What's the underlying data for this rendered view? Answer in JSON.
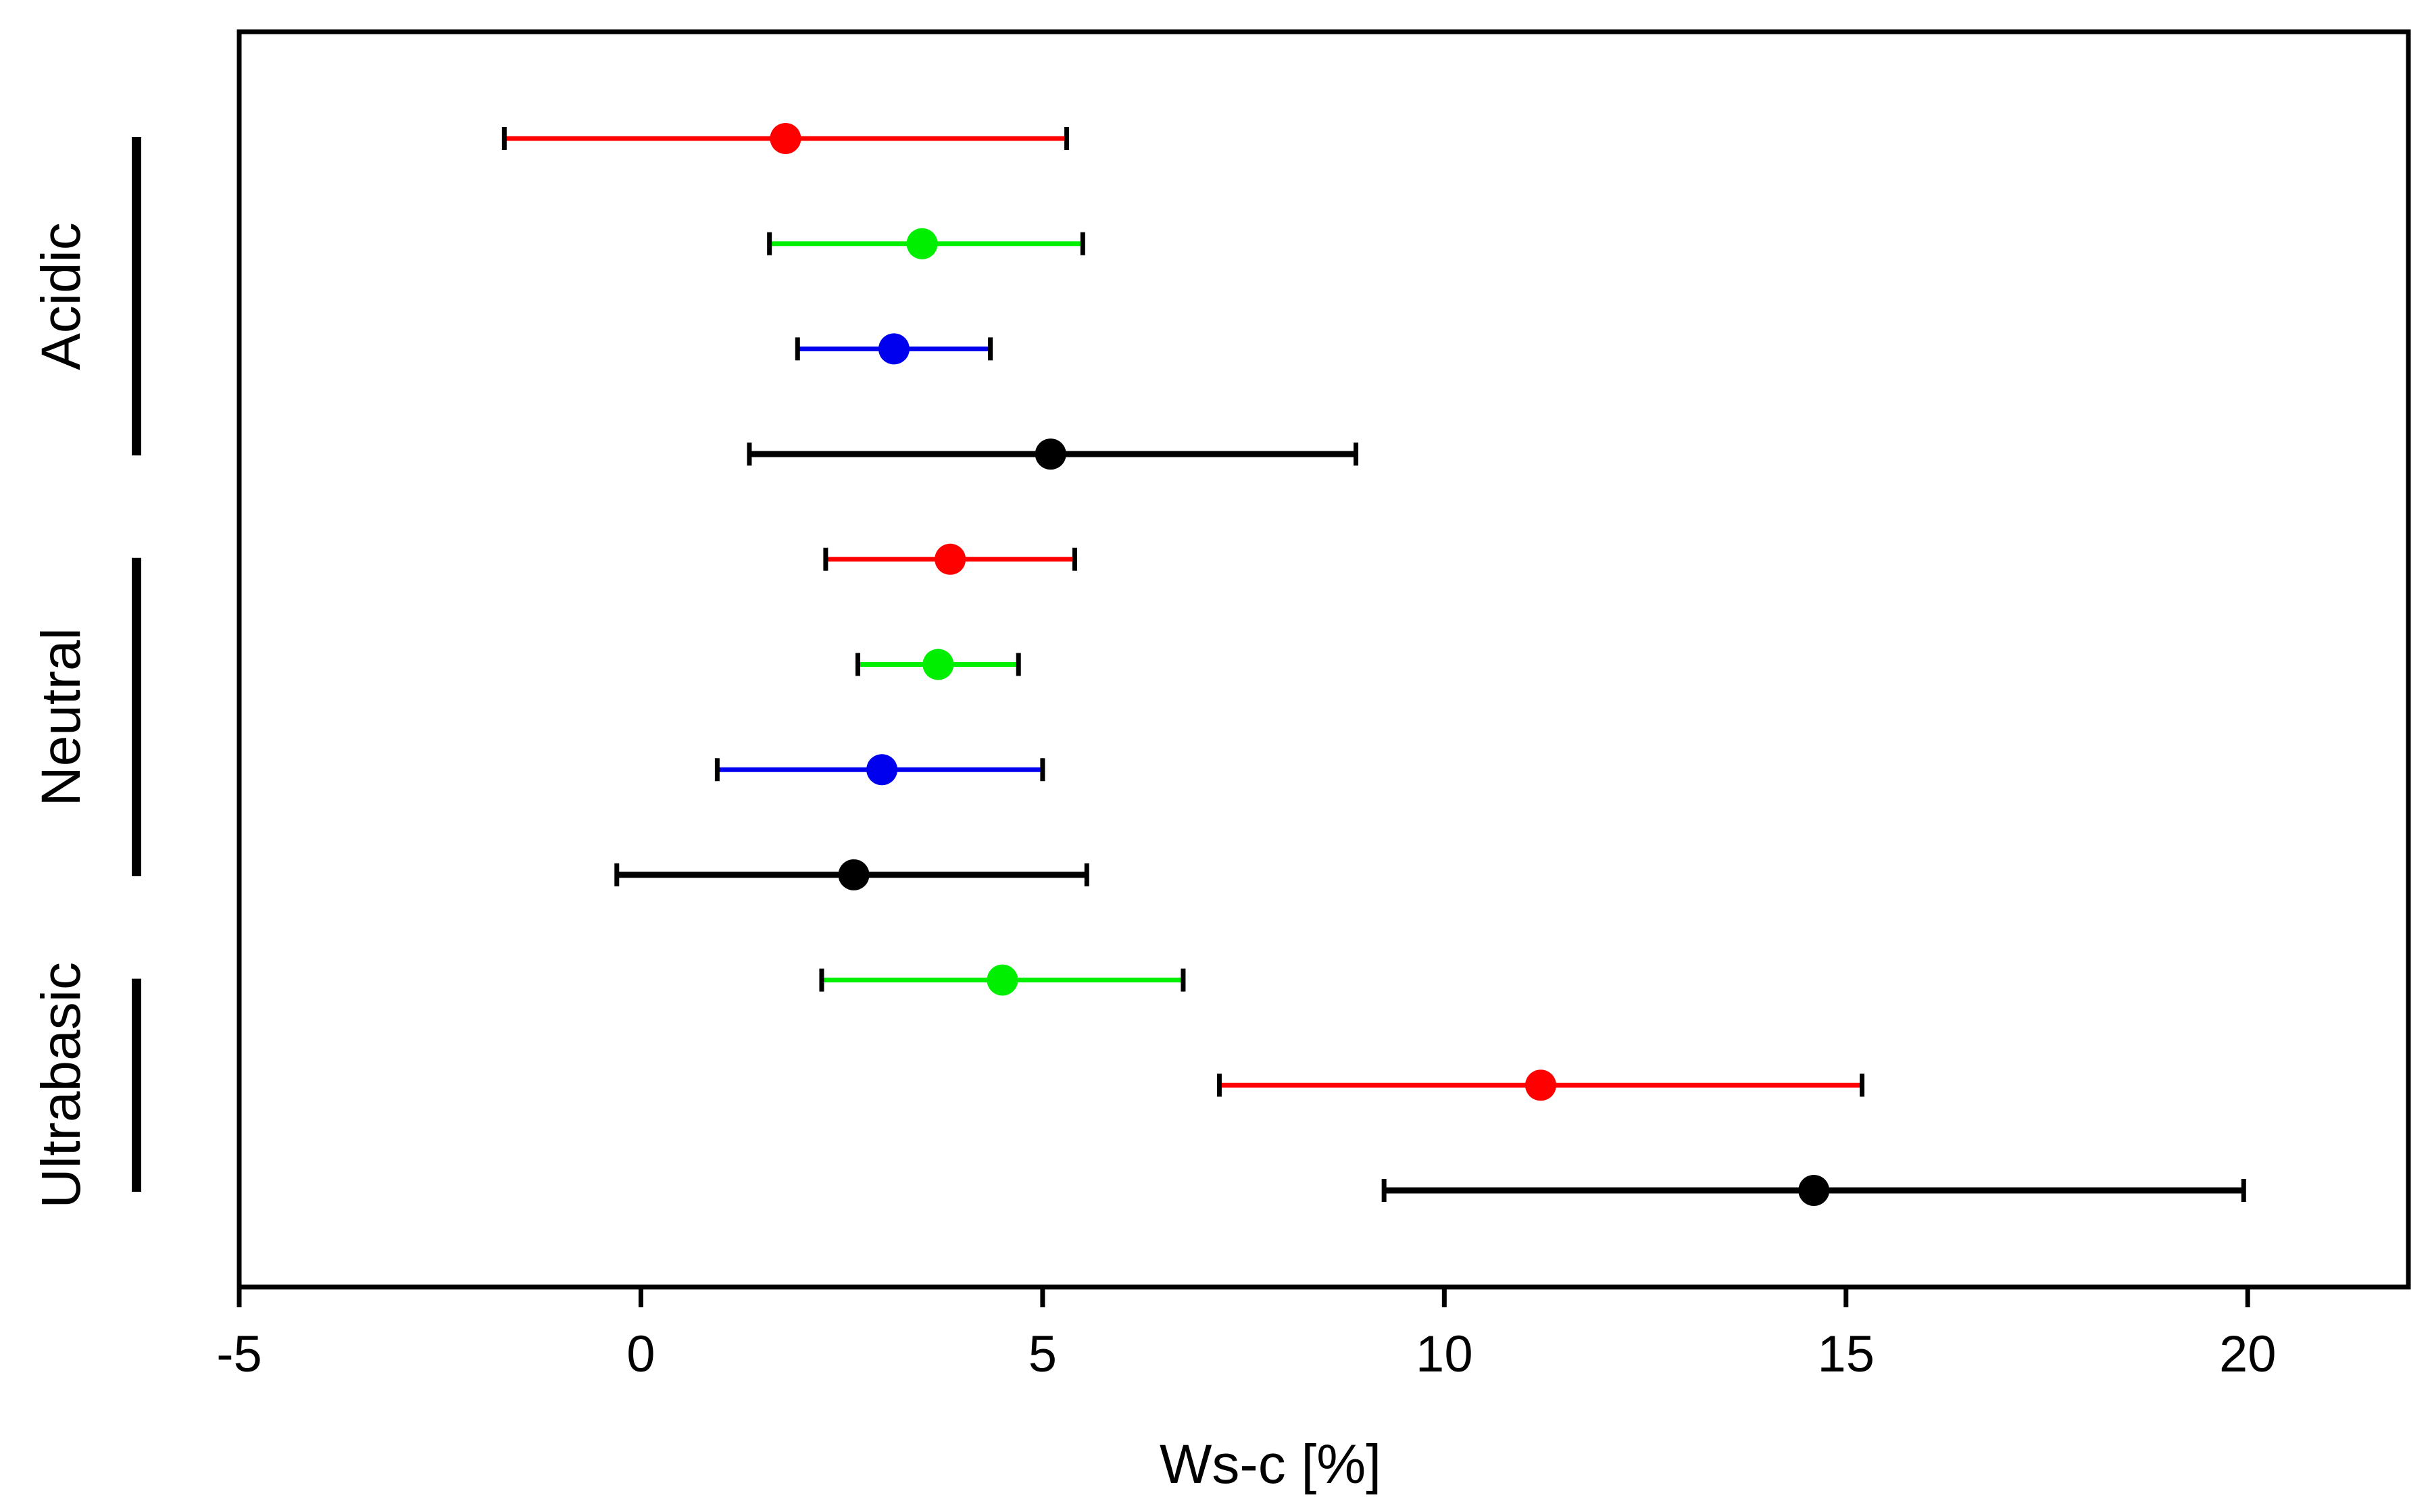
{
  "chart_data": {
    "type": "forest-plot",
    "title": "",
    "xlabel": "Ws-c [%]",
    "ylabel": "",
    "xlim": [
      -5,
      22
    ],
    "xticks": [
      -5,
      0,
      5,
      10,
      15,
      20
    ],
    "xtick_labels": [
      "-5",
      "0",
      "5",
      "10",
      "15",
      "20"
    ],
    "grid": false,
    "legend": "none",
    "groups": [
      {
        "label": "Acidic",
        "rows": [
          0,
          3
        ]
      },
      {
        "label": "Neutral",
        "rows": [
          4,
          7
        ]
      },
      {
        "label": "Ultrabasic",
        "rows": [
          8,
          10
        ]
      }
    ],
    "points": [
      {
        "group": "Acidic",
        "color": "#ff0000",
        "mean": 1.8,
        "low": -1.7,
        "high": 5.3
      },
      {
        "group": "Acidic",
        "color": "#00ee00",
        "mean": 3.5,
        "low": 1.6,
        "high": 5.5
      },
      {
        "group": "Acidic",
        "color": "#0000ee",
        "mean": 3.15,
        "low": 1.95,
        "high": 4.35
      },
      {
        "group": "Acidic",
        "color": "#000000",
        "mean": 5.1,
        "low": 1.35,
        "high": 8.9
      },
      {
        "group": "Neutral",
        "color": "#ff0000",
        "mean": 3.85,
        "low": 2.3,
        "high": 5.4
      },
      {
        "group": "Neutral",
        "color": "#00ee00",
        "mean": 3.7,
        "low": 2.7,
        "high": 4.7
      },
      {
        "group": "Neutral",
        "color": "#0000ee",
        "mean": 3.0,
        "low": 0.95,
        "high": 5.0
      },
      {
        "group": "Neutral",
        "color": "#000000",
        "mean": 2.65,
        "low": -0.3,
        "high": 5.55
      },
      {
        "group": "Ultrabasic",
        "color": "#00ee00",
        "mean": 4.5,
        "low": 2.25,
        "high": 6.75
      },
      {
        "group": "Ultrabasic",
        "color": "#ff0000",
        "mean": 11.2,
        "low": 7.2,
        "high": 15.2
      },
      {
        "group": "Ultrabasic",
        "color": "#000000",
        "mean": 14.6,
        "low": 9.25,
        "high": 19.95
      }
    ]
  }
}
